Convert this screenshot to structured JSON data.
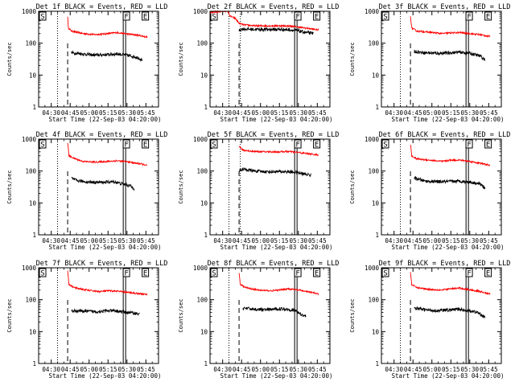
{
  "chart_data": {
    "type": "line",
    "title_template": "Det {n} BLACK = Events, RED = LLD",
    "detectors": [
      "1f",
      "2f",
      "3f",
      "4f",
      "5f",
      "6f",
      "7f",
      "8f",
      "9f"
    ],
    "titles": [
      "Det 1f BLACK = Events, RED = LLD",
      "Det 2f BLACK = Events, RED = LLD",
      "Det 3f BLACK = Events, RED = LLD",
      "Det 4f BLACK = Events, RED = LLD",
      "Det 5f BLACK = Events, RED = LLD",
      "Det 6f BLACK = Events, RED = LLD",
      "Det 7f BLACK = Events, RED = LLD",
      "Det 8f BLACK = Events, RED = LLD",
      "Det 9f BLACK = Events, RED = LLD"
    ],
    "xlabel": "Start Time (22-Sep-03 04:20:00)",
    "ylabel": "Counts/sec",
    "yscale": "log",
    "ylim": [
      1,
      1000
    ],
    "yticks": [
      1,
      10,
      100,
      1000
    ],
    "ytick_labels": [
      "1",
      "10",
      "100",
      "1000"
    ],
    "xlim_minutes": [
      0,
      95
    ],
    "xticks_minutes": [
      10,
      25,
      40,
      55,
      70,
      85
    ],
    "xtick_labels": [
      "04:30",
      "04:45",
      "05:00",
      "05:15",
      "05:30",
      "05:45"
    ],
    "markers": [
      {
        "label": "S",
        "minute": 0,
        "style": "box"
      },
      {
        "label": "F",
        "minute": 67,
        "style": "box"
      },
      {
        "label": "E",
        "minute": 82,
        "style": "box"
      }
    ],
    "vlines": [
      {
        "minute": 15,
        "style": "dotted"
      },
      {
        "minute": 24,
        "style": "dotted",
        "panels": [
          1,
          4
        ]
      },
      {
        "minute": 23,
        "style": "dashed"
      },
      {
        "minute": 68,
        "style": "solid-double"
      }
    ],
    "series_spec": [
      {
        "name": "Events",
        "color": "#000000"
      },
      {
        "name": "LLD",
        "color": "#ff0000"
      }
    ],
    "panels": [
      {
        "det": "1f",
        "lld": [
          [
            23,
            700
          ],
          [
            23.5,
            300
          ],
          [
            26,
            240
          ],
          [
            35,
            200
          ],
          [
            45,
            185
          ],
          [
            55,
            200
          ],
          [
            62,
            215
          ],
          [
            70,
            195
          ],
          [
            80,
            175
          ],
          [
            86,
            155
          ]
        ],
        "events": [
          [
            26,
            50
          ],
          [
            35,
            46
          ],
          [
            45,
            42
          ],
          [
            55,
            44
          ],
          [
            62,
            46
          ],
          [
            70,
            42
          ],
          [
            78,
            36
          ],
          [
            82,
            30
          ]
        ]
      },
      {
        "det": "2f",
        "lld": [
          [
            0,
            900
          ],
          [
            10,
            1000
          ],
          [
            14,
            1000
          ],
          [
            16,
            700
          ],
          [
            20,
            600
          ],
          [
            23,
            420
          ],
          [
            26,
            380
          ],
          [
            35,
            350
          ],
          [
            45,
            350
          ],
          [
            55,
            350
          ],
          [
            65,
            340
          ],
          [
            75,
            300
          ],
          [
            86,
            260
          ]
        ],
        "events": [
          [
            23,
            250
          ],
          [
            26,
            280
          ],
          [
            35,
            270
          ],
          [
            45,
            270
          ],
          [
            55,
            270
          ],
          [
            62,
            265
          ],
          [
            68,
            250
          ],
          [
            75,
            220
          ],
          [
            82,
            200
          ]
        ]
      },
      {
        "det": "3f",
        "lld": [
          [
            23,
            700
          ],
          [
            24,
            300
          ],
          [
            28,
            240
          ],
          [
            38,
            220
          ],
          [
            48,
            200
          ],
          [
            55,
            210
          ],
          [
            62,
            215
          ],
          [
            70,
            200
          ],
          [
            80,
            180
          ],
          [
            86,
            160
          ]
        ],
        "events": [
          [
            26,
            55
          ],
          [
            35,
            50
          ],
          [
            45,
            48
          ],
          [
            55,
            50
          ],
          [
            62,
            52
          ],
          [
            70,
            48
          ],
          [
            78,
            40
          ],
          [
            82,
            30
          ]
        ]
      },
      {
        "det": "4f",
        "lld": [
          [
            23,
            800
          ],
          [
            24,
            300
          ],
          [
            28,
            250
          ],
          [
            35,
            200
          ],
          [
            45,
            190
          ],
          [
            55,
            200
          ],
          [
            62,
            210
          ],
          [
            70,
            195
          ],
          [
            80,
            170
          ],
          [
            86,
            150
          ]
        ],
        "events": [
          [
            26,
            60
          ],
          [
            30,
            50
          ],
          [
            40,
            45
          ],
          [
            50,
            44
          ],
          [
            60,
            46
          ],
          [
            66,
            40
          ],
          [
            72,
            35
          ],
          [
            76,
            28
          ]
        ]
      },
      {
        "det": "5f",
        "lld": [
          [
            23,
            600
          ],
          [
            26,
            450
          ],
          [
            35,
            410
          ],
          [
            45,
            400
          ],
          [
            55,
            400
          ],
          [
            62,
            410
          ],
          [
            70,
            380
          ],
          [
            80,
            340
          ],
          [
            86,
            320
          ]
        ],
        "events": [
          [
            23,
            100
          ],
          [
            26,
            115
          ],
          [
            35,
            100
          ],
          [
            45,
            95
          ],
          [
            55,
            96
          ],
          [
            62,
            95
          ],
          [
            68,
            90
          ],
          [
            75,
            80
          ],
          [
            80,
            75
          ]
        ]
      },
      {
        "det": "6f",
        "lld": [
          [
            23,
            700
          ],
          [
            24,
            300
          ],
          [
            28,
            240
          ],
          [
            38,
            220
          ],
          [
            48,
            200
          ],
          [
            55,
            220
          ],
          [
            62,
            220
          ],
          [
            70,
            200
          ],
          [
            80,
            170
          ],
          [
            86,
            150
          ]
        ],
        "events": [
          [
            26,
            60
          ],
          [
            35,
            48
          ],
          [
            45,
            46
          ],
          [
            55,
            47
          ],
          [
            62,
            48
          ],
          [
            70,
            45
          ],
          [
            78,
            40
          ],
          [
            82,
            30
          ]
        ]
      },
      {
        "det": "7f",
        "lld": [
          [
            23,
            800
          ],
          [
            24,
            300
          ],
          [
            28,
            240
          ],
          [
            38,
            200
          ],
          [
            48,
            180
          ],
          [
            55,
            190
          ],
          [
            62,
            185
          ],
          [
            70,
            170
          ],
          [
            80,
            155
          ],
          [
            86,
            145
          ]
        ],
        "events": [
          [
            26,
            45
          ],
          [
            35,
            44
          ],
          [
            45,
            42
          ],
          [
            55,
            45
          ],
          [
            62,
            44
          ],
          [
            70,
            40
          ],
          [
            76,
            38
          ],
          [
            80,
            35
          ]
        ]
      },
      {
        "det": "8f",
        "lld": [
          [
            23,
            700
          ],
          [
            24,
            300
          ],
          [
            28,
            240
          ],
          [
            38,
            200
          ],
          [
            48,
            190
          ],
          [
            55,
            200
          ],
          [
            62,
            220
          ],
          [
            70,
            200
          ],
          [
            80,
            170
          ],
          [
            86,
            150
          ]
        ],
        "events": [
          [
            26,
            55
          ],
          [
            35,
            50
          ],
          [
            45,
            48
          ],
          [
            55,
            52
          ],
          [
            62,
            50
          ],
          [
            68,
            45
          ],
          [
            72,
            35
          ],
          [
            76,
            30
          ]
        ]
      },
      {
        "det": "9f",
        "lld": [
          [
            23,
            700
          ],
          [
            24,
            300
          ],
          [
            28,
            240
          ],
          [
            38,
            210
          ],
          [
            48,
            200
          ],
          [
            55,
            220
          ],
          [
            62,
            230
          ],
          [
            70,
            205
          ],
          [
            80,
            175
          ],
          [
            86,
            150
          ]
        ],
        "events": [
          [
            26,
            55
          ],
          [
            35,
            48
          ],
          [
            45,
            45
          ],
          [
            55,
            48
          ],
          [
            62,
            50
          ],
          [
            68,
            46
          ],
          [
            76,
            40
          ],
          [
            82,
            28
          ]
        ]
      }
    ]
  }
}
